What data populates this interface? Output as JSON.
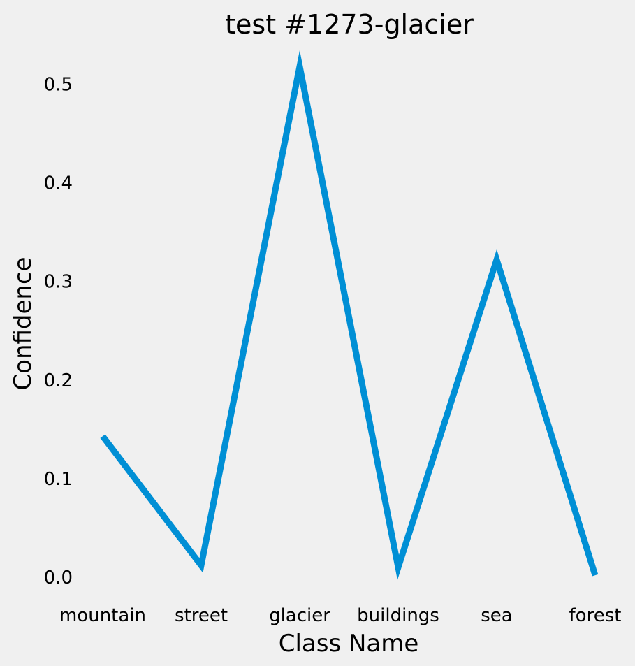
{
  "chart_data": {
    "type": "line",
    "title": "test #1273-glacier",
    "xlabel": "Class Name",
    "ylabel": "Confidence",
    "categories": [
      "mountain",
      "street",
      "glacier",
      "buildings",
      "sea",
      "forest"
    ],
    "series": [
      {
        "values": [
          0.143,
          0.012,
          0.518,
          0.01,
          0.322,
          0.002
        ]
      }
    ],
    "yticks": [
      "0.0",
      "0.1",
      "0.2",
      "0.3",
      "0.4",
      "0.5"
    ],
    "ylim": [
      0.0,
      0.5
    ],
    "grid": false,
    "line_color": "#008fd5",
    "background_color": "#f0f0f0"
  }
}
